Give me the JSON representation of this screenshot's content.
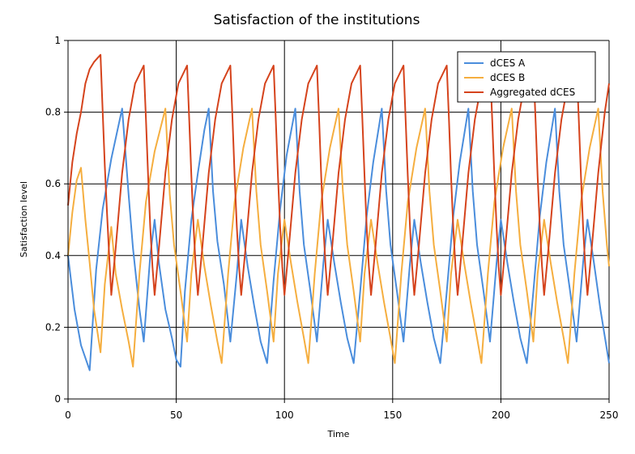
{
  "chart_data": {
    "type": "line",
    "title": "Satisfaction of the institutions",
    "xlabel": "Time",
    "ylabel": "Satisfaction level",
    "xlim": [
      0,
      250
    ],
    "ylim": [
      0,
      1
    ],
    "x_ticks": [
      "0",
      "50",
      "100",
      "150",
      "200",
      "250"
    ],
    "y_ticks": [
      "0",
      "0.2",
      "0.4",
      "0.6",
      "0.8",
      "1"
    ],
    "grid": true,
    "legend_position": "top-right",
    "series": [
      {
        "name": "dCES A",
        "color": "#4a8ddc",
        "points": [
          [
            0,
            0.4
          ],
          [
            3,
            0.25
          ],
          [
            6,
            0.15
          ],
          [
            10,
            0.08
          ],
          [
            13,
            0.36
          ],
          [
            16,
            0.53
          ],
          [
            20,
            0.67
          ],
          [
            25,
            0.81
          ],
          [
            28,
            0.57
          ],
          [
            30,
            0.42
          ],
          [
            33,
            0.25
          ],
          [
            35,
            0.16
          ],
          [
            38,
            0.4
          ],
          [
            40,
            0.5
          ],
          [
            42,
            0.38
          ],
          [
            45,
            0.25
          ],
          [
            48,
            0.17
          ],
          [
            50,
            0.11
          ],
          [
            52,
            0.09
          ],
          [
            54,
            0.3
          ],
          [
            57,
            0.5
          ],
          [
            60,
            0.63
          ],
          [
            63,
            0.75
          ],
          [
            65,
            0.81
          ],
          [
            67,
            0.58
          ],
          [
            69,
            0.44
          ],
          [
            72,
            0.32
          ],
          [
            75,
            0.16
          ],
          [
            78,
            0.35
          ],
          [
            80,
            0.5
          ],
          [
            83,
            0.37
          ],
          [
            86,
            0.26
          ],
          [
            89,
            0.16
          ],
          [
            92,
            0.1
          ],
          [
            95,
            0.33
          ],
          [
            98,
            0.53
          ],
          [
            101,
            0.68
          ],
          [
            105,
            0.81
          ],
          [
            107,
            0.58
          ],
          [
            109,
            0.43
          ],
          [
            112,
            0.3
          ],
          [
            115,
            0.16
          ],
          [
            118,
            0.38
          ],
          [
            120,
            0.5
          ],
          [
            123,
            0.38
          ],
          [
            126,
            0.27
          ],
          [
            129,
            0.17
          ],
          [
            132,
            0.1
          ],
          [
            135,
            0.3
          ],
          [
            138,
            0.51
          ],
          [
            141,
            0.66
          ],
          [
            145,
            0.81
          ],
          [
            147,
            0.58
          ],
          [
            149,
            0.43
          ],
          [
            152,
            0.3
          ],
          [
            155,
            0.16
          ],
          [
            158,
            0.38
          ],
          [
            160,
            0.5
          ],
          [
            163,
            0.38
          ],
          [
            166,
            0.27
          ],
          [
            169,
            0.17
          ],
          [
            172,
            0.1
          ],
          [
            175,
            0.3
          ],
          [
            178,
            0.51
          ],
          [
            181,
            0.66
          ],
          [
            185,
            0.81
          ],
          [
            187,
            0.58
          ],
          [
            189,
            0.43
          ],
          [
            192,
            0.3
          ],
          [
            195,
            0.16
          ],
          [
            198,
            0.38
          ],
          [
            200,
            0.5
          ],
          [
            203,
            0.38
          ],
          [
            206,
            0.27
          ],
          [
            209,
            0.17
          ],
          [
            212,
            0.1
          ],
          [
            215,
            0.3
          ],
          [
            218,
            0.51
          ],
          [
            221,
            0.66
          ],
          [
            225,
            0.81
          ],
          [
            227,
            0.58
          ],
          [
            229,
            0.43
          ],
          [
            232,
            0.3
          ],
          [
            235,
            0.16
          ],
          [
            238,
            0.38
          ],
          [
            240,
            0.5
          ],
          [
            243,
            0.38
          ],
          [
            246,
            0.25
          ],
          [
            250,
            0.1
          ]
        ]
      },
      {
        "name": "dCES B",
        "color": "#f5ae3f",
        "points": [
          [
            0,
            0.4
          ],
          [
            2,
            0.52
          ],
          [
            4,
            0.61
          ],
          [
            6,
            0.645
          ],
          [
            8,
            0.5
          ],
          [
            10,
            0.38
          ],
          [
            12,
            0.25
          ],
          [
            15,
            0.13
          ],
          [
            17,
            0.32
          ],
          [
            20,
            0.48
          ],
          [
            22,
            0.35
          ],
          [
            25,
            0.25
          ],
          [
            28,
            0.16
          ],
          [
            30,
            0.09
          ],
          [
            33,
            0.35
          ],
          [
            36,
            0.55
          ],
          [
            40,
            0.69
          ],
          [
            45,
            0.81
          ],
          [
            47,
            0.57
          ],
          [
            49,
            0.43
          ],
          [
            52,
            0.3
          ],
          [
            55,
            0.16
          ],
          [
            57,
            0.35
          ],
          [
            60,
            0.5
          ],
          [
            63,
            0.37
          ],
          [
            66,
            0.26
          ],
          [
            69,
            0.16
          ],
          [
            71,
            0.1
          ],
          [
            74,
            0.35
          ],
          [
            77,
            0.55
          ],
          [
            81,
            0.7
          ],
          [
            85,
            0.81
          ],
          [
            87,
            0.58
          ],
          [
            89,
            0.43
          ],
          [
            92,
            0.3
          ],
          [
            95,
            0.16
          ],
          [
            97,
            0.35
          ],
          [
            100,
            0.5
          ],
          [
            103,
            0.38
          ],
          [
            106,
            0.27
          ],
          [
            109,
            0.17
          ],
          [
            111,
            0.1
          ],
          [
            114,
            0.35
          ],
          [
            117,
            0.55
          ],
          [
            121,
            0.7
          ],
          [
            125,
            0.81
          ],
          [
            127,
            0.58
          ],
          [
            129,
            0.43
          ],
          [
            132,
            0.3
          ],
          [
            135,
            0.16
          ],
          [
            137,
            0.35
          ],
          [
            140,
            0.5
          ],
          [
            143,
            0.38
          ],
          [
            146,
            0.27
          ],
          [
            149,
            0.17
          ],
          [
            151,
            0.1
          ],
          [
            154,
            0.35
          ],
          [
            157,
            0.55
          ],
          [
            161,
            0.7
          ],
          [
            165,
            0.81
          ],
          [
            167,
            0.58
          ],
          [
            169,
            0.43
          ],
          [
            172,
            0.3
          ],
          [
            175,
            0.16
          ],
          [
            177,
            0.35
          ],
          [
            180,
            0.5
          ],
          [
            183,
            0.38
          ],
          [
            186,
            0.27
          ],
          [
            189,
            0.17
          ],
          [
            191,
            0.1
          ],
          [
            194,
            0.35
          ],
          [
            197,
            0.55
          ],
          [
            201,
            0.7
          ],
          [
            205,
            0.81
          ],
          [
            207,
            0.58
          ],
          [
            209,
            0.43
          ],
          [
            212,
            0.3
          ],
          [
            215,
            0.16
          ],
          [
            217,
            0.35
          ],
          [
            220,
            0.5
          ],
          [
            223,
            0.38
          ],
          [
            226,
            0.27
          ],
          [
            229,
            0.17
          ],
          [
            231,
            0.1
          ],
          [
            234,
            0.35
          ],
          [
            237,
            0.55
          ],
          [
            241,
            0.7
          ],
          [
            245,
            0.81
          ],
          [
            247,
            0.58
          ],
          [
            249,
            0.43
          ],
          [
            250,
            0.37
          ]
        ]
      },
      {
        "name": "Aggregated dCES",
        "color": "#d5431c",
        "points": [
          [
            0,
            0.54
          ],
          [
            2,
            0.66
          ],
          [
            4,
            0.74
          ],
          [
            6,
            0.8
          ],
          [
            8,
            0.88
          ],
          [
            10,
            0.92
          ],
          [
            12,
            0.94
          ],
          [
            15,
            0.96
          ],
          [
            16,
            0.8
          ],
          [
            17,
            0.65
          ],
          [
            18,
            0.52
          ],
          [
            19,
            0.4
          ],
          [
            20,
            0.29
          ],
          [
            22,
            0.42
          ],
          [
            25,
            0.63
          ],
          [
            28,
            0.78
          ],
          [
            31,
            0.88
          ],
          [
            35,
            0.93
          ],
          [
            36,
            0.78
          ],
          [
            37,
            0.62
          ],
          [
            38,
            0.48
          ],
          [
            39,
            0.37
          ],
          [
            40,
            0.29
          ],
          [
            42,
            0.42
          ],
          [
            45,
            0.63
          ],
          [
            48,
            0.78
          ],
          [
            51,
            0.88
          ],
          [
            55,
            0.93
          ],
          [
            56,
            0.78
          ],
          [
            57,
            0.62
          ],
          [
            58,
            0.48
          ],
          [
            59,
            0.37
          ],
          [
            60,
            0.29
          ],
          [
            62,
            0.42
          ],
          [
            65,
            0.63
          ],
          [
            68,
            0.78
          ],
          [
            71,
            0.88
          ],
          [
            75,
            0.93
          ],
          [
            76,
            0.78
          ],
          [
            77,
            0.62
          ],
          [
            78,
            0.48
          ],
          [
            79,
            0.37
          ],
          [
            80,
            0.29
          ],
          [
            82,
            0.42
          ],
          [
            85,
            0.63
          ],
          [
            88,
            0.78
          ],
          [
            91,
            0.88
          ],
          [
            95,
            0.93
          ],
          [
            96,
            0.78
          ],
          [
            97,
            0.62
          ],
          [
            98,
            0.48
          ],
          [
            99,
            0.37
          ],
          [
            100,
            0.29
          ],
          [
            102,
            0.42
          ],
          [
            105,
            0.63
          ],
          [
            108,
            0.78
          ],
          [
            111,
            0.88
          ],
          [
            115,
            0.93
          ],
          [
            116,
            0.78
          ],
          [
            117,
            0.62
          ],
          [
            118,
            0.48
          ],
          [
            119,
            0.37
          ],
          [
            120,
            0.29
          ],
          [
            122,
            0.42
          ],
          [
            125,
            0.63
          ],
          [
            128,
            0.78
          ],
          [
            131,
            0.88
          ],
          [
            135,
            0.93
          ],
          [
            136,
            0.78
          ],
          [
            137,
            0.62
          ],
          [
            138,
            0.48
          ],
          [
            139,
            0.37
          ],
          [
            140,
            0.29
          ],
          [
            142,
            0.42
          ],
          [
            145,
            0.63
          ],
          [
            148,
            0.78
          ],
          [
            151,
            0.88
          ],
          [
            155,
            0.93
          ],
          [
            156,
            0.78
          ],
          [
            157,
            0.62
          ],
          [
            158,
            0.48
          ],
          [
            159,
            0.37
          ],
          [
            160,
            0.29
          ],
          [
            162,
            0.42
          ],
          [
            165,
            0.63
          ],
          [
            168,
            0.78
          ],
          [
            171,
            0.88
          ],
          [
            175,
            0.93
          ],
          [
            176,
            0.78
          ],
          [
            177,
            0.62
          ],
          [
            178,
            0.48
          ],
          [
            179,
            0.37
          ],
          [
            180,
            0.29
          ],
          [
            182,
            0.42
          ],
          [
            185,
            0.63
          ],
          [
            188,
            0.78
          ],
          [
            191,
            0.88
          ],
          [
            195,
            0.93
          ],
          [
            196,
            0.78
          ],
          [
            197,
            0.62
          ],
          [
            198,
            0.48
          ],
          [
            199,
            0.37
          ],
          [
            200,
            0.29
          ],
          [
            202,
            0.42
          ],
          [
            205,
            0.63
          ],
          [
            208,
            0.78
          ],
          [
            211,
            0.88
          ],
          [
            215,
            0.93
          ],
          [
            216,
            0.78
          ],
          [
            217,
            0.62
          ],
          [
            218,
            0.48
          ],
          [
            219,
            0.37
          ],
          [
            220,
            0.29
          ],
          [
            222,
            0.42
          ],
          [
            225,
            0.63
          ],
          [
            228,
            0.78
          ],
          [
            231,
            0.88
          ],
          [
            235,
            0.93
          ],
          [
            236,
            0.78
          ],
          [
            237,
            0.62
          ],
          [
            238,
            0.48
          ],
          [
            239,
            0.37
          ],
          [
            240,
            0.29
          ],
          [
            242,
            0.42
          ],
          [
            245,
            0.63
          ],
          [
            248,
            0.8
          ],
          [
            250,
            0.88
          ]
        ]
      }
    ]
  }
}
